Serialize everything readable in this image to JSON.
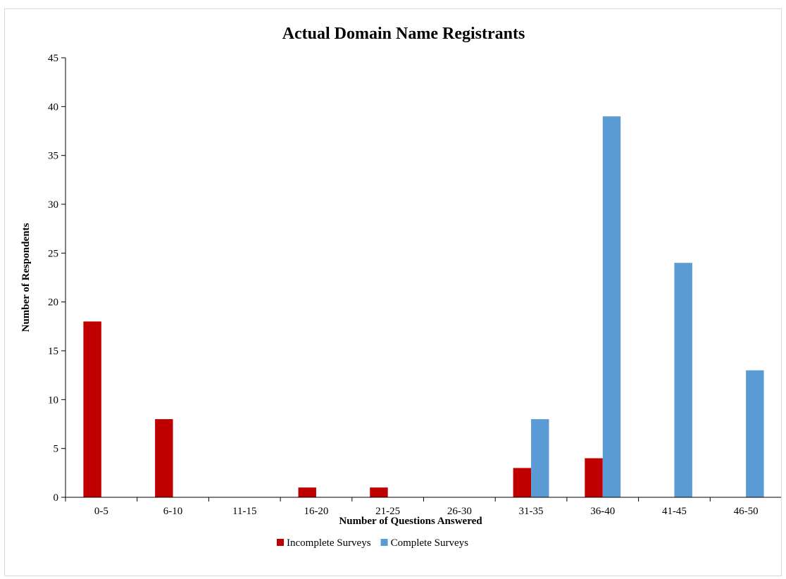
{
  "chart_data": {
    "type": "bar",
    "title": "Actual Domain Name Registrants",
    "xlabel": "Number of Questions Answered",
    "ylabel": "Number of Respondents",
    "categories": [
      "0-5",
      "6-10",
      "11-15",
      "16-20",
      "21-25",
      "26-30",
      "31-35",
      "36-40",
      "41-45",
      "46-50"
    ],
    "series": [
      {
        "name": "Incomplete Surveys",
        "color": "#c00000",
        "values": [
          18,
          8,
          0,
          1,
          1,
          0,
          3,
          4,
          0,
          0
        ]
      },
      {
        "name": "Complete Surveys",
        "color": "#5b9bd5",
        "values": [
          0,
          0,
          0,
          0,
          0,
          0,
          8,
          39,
          24,
          13
        ]
      }
    ],
    "ylim": [
      0,
      45
    ],
    "yticks": [
      "0",
      "5",
      "10",
      "15",
      "20",
      "25",
      "30",
      "35",
      "40",
      "45"
    ],
    "grid": false,
    "legend_position": "bottom"
  }
}
